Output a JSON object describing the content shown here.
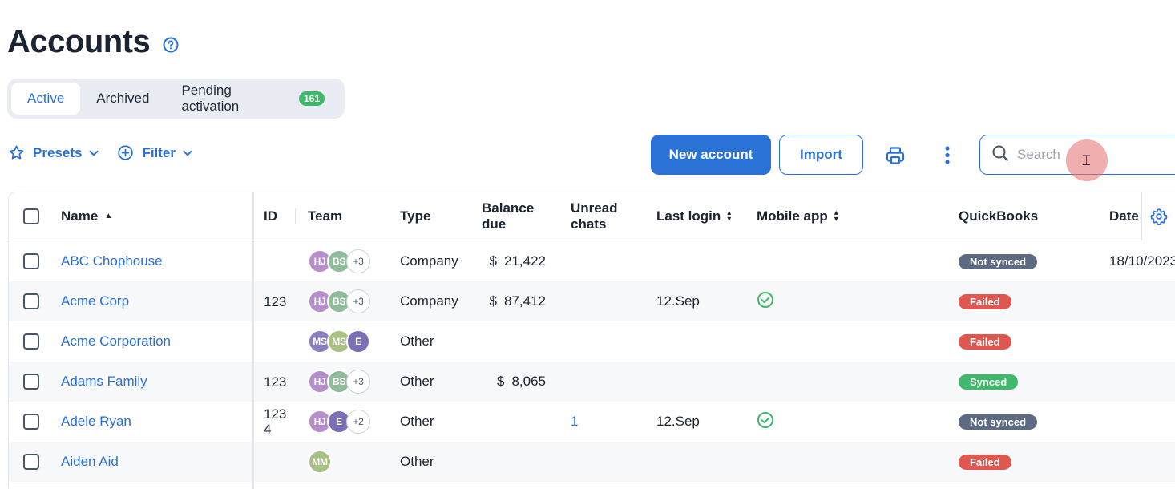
{
  "page": {
    "title": "Accounts"
  },
  "icons": {
    "help": "help-circle-icon",
    "presets": "star-icon",
    "filter": "plus-circle-icon",
    "chevron": "chevron-down-icon",
    "print": "printer-icon",
    "more": "more-vertical-icon",
    "search": "search-icon",
    "settings": "gear-icon"
  },
  "tabs": [
    {
      "label": "Active",
      "active": true
    },
    {
      "label": "Archived",
      "active": false
    },
    {
      "label": "Pending activation",
      "active": false,
      "badge": "161"
    }
  ],
  "toolbar": {
    "presets_label": "Presets",
    "filter_label": "Filter",
    "new_account_label": "New account",
    "import_label": "Import",
    "search_placeholder": "Search"
  },
  "colors": {
    "accent": "#2b72d6",
    "synced": "#40b86b",
    "failed": "#e0574f",
    "not_synced": "#5d6b82",
    "success_check": "#40b86b"
  },
  "table": {
    "headers": {
      "name": "Name",
      "id": "ID",
      "team": "Team",
      "type": "Type",
      "balance_line1": "Balance",
      "balance_line2": "due",
      "unread_line1": "Unread",
      "unread_line2": "chats",
      "last_login": "Last login",
      "mobile_app": "Mobile app",
      "quickbooks": "QuickBooks",
      "date": "Date"
    },
    "rows": [
      {
        "name": "ABC Chophouse",
        "id": "",
        "team": [
          {
            "initials": "HJ",
            "color": "#b58fc9"
          },
          {
            "initials": "BS",
            "color": "#8fbc9a"
          },
          {
            "initials": "+3",
            "more": true
          }
        ],
        "type": "Company",
        "balance_currency": "$",
        "balance_amount": "21,422",
        "unread": "",
        "last_login": "",
        "mobile_app": false,
        "quickbooks": {
          "label": "Not synced",
          "status": "not_synced"
        },
        "date": "18/10/2023"
      },
      {
        "name": "Acme Corp",
        "id": "123",
        "team": [
          {
            "initials": "HJ",
            "color": "#b58fc9"
          },
          {
            "initials": "BS",
            "color": "#8fbc9a"
          },
          {
            "initials": "+3",
            "more": true
          }
        ],
        "type": "Company",
        "balance_currency": "$",
        "balance_amount": "87,412",
        "unread": "",
        "last_login": "12.Sep",
        "mobile_app": true,
        "quickbooks": {
          "label": "Failed",
          "status": "failed"
        },
        "date": ""
      },
      {
        "name": "Acme Corporation",
        "id": "",
        "team": [
          {
            "initials": "MS",
            "color": "#8c7fc0"
          },
          {
            "initials": "MS",
            "color": "#a9bf84"
          },
          {
            "initials": "E",
            "color": "#7d6fb6"
          }
        ],
        "type": "Other",
        "balance_currency": "",
        "balance_amount": "",
        "unread": "",
        "last_login": "",
        "mobile_app": false,
        "quickbooks": {
          "label": "Failed",
          "status": "failed"
        },
        "date": ""
      },
      {
        "name": "Adams Family",
        "id": "123",
        "team": [
          {
            "initials": "HJ",
            "color": "#b58fc9"
          },
          {
            "initials": "BS",
            "color": "#8fbc9a"
          },
          {
            "initials": "+3",
            "more": true
          }
        ],
        "type": "Other",
        "balance_currency": "$",
        "balance_amount": "8,065",
        "unread": "",
        "last_login": "",
        "mobile_app": false,
        "quickbooks": {
          "label": "Synced",
          "status": "synced"
        },
        "date": ""
      },
      {
        "name": "Adele Ryan",
        "id": "123\n4",
        "team": [
          {
            "initials": "HJ",
            "color": "#b58fc9"
          },
          {
            "initials": "E",
            "color": "#7d6fb6"
          },
          {
            "initials": "+2",
            "more": true
          }
        ],
        "type": "Other",
        "balance_currency": "",
        "balance_amount": "",
        "unread": "1",
        "last_login": "12.Sep",
        "mobile_app": true,
        "quickbooks": {
          "label": "Not synced",
          "status": "not_synced"
        },
        "date": ""
      },
      {
        "name": "Aiden Aid",
        "id": "",
        "team": [
          {
            "initials": "MM",
            "color": "#a9bf84"
          }
        ],
        "type": "Other",
        "balance_currency": "",
        "balance_amount": "",
        "unread": "",
        "last_login": "",
        "mobile_app": false,
        "quickbooks": {
          "label": "Failed",
          "status": "failed"
        },
        "date": ""
      }
    ]
  }
}
